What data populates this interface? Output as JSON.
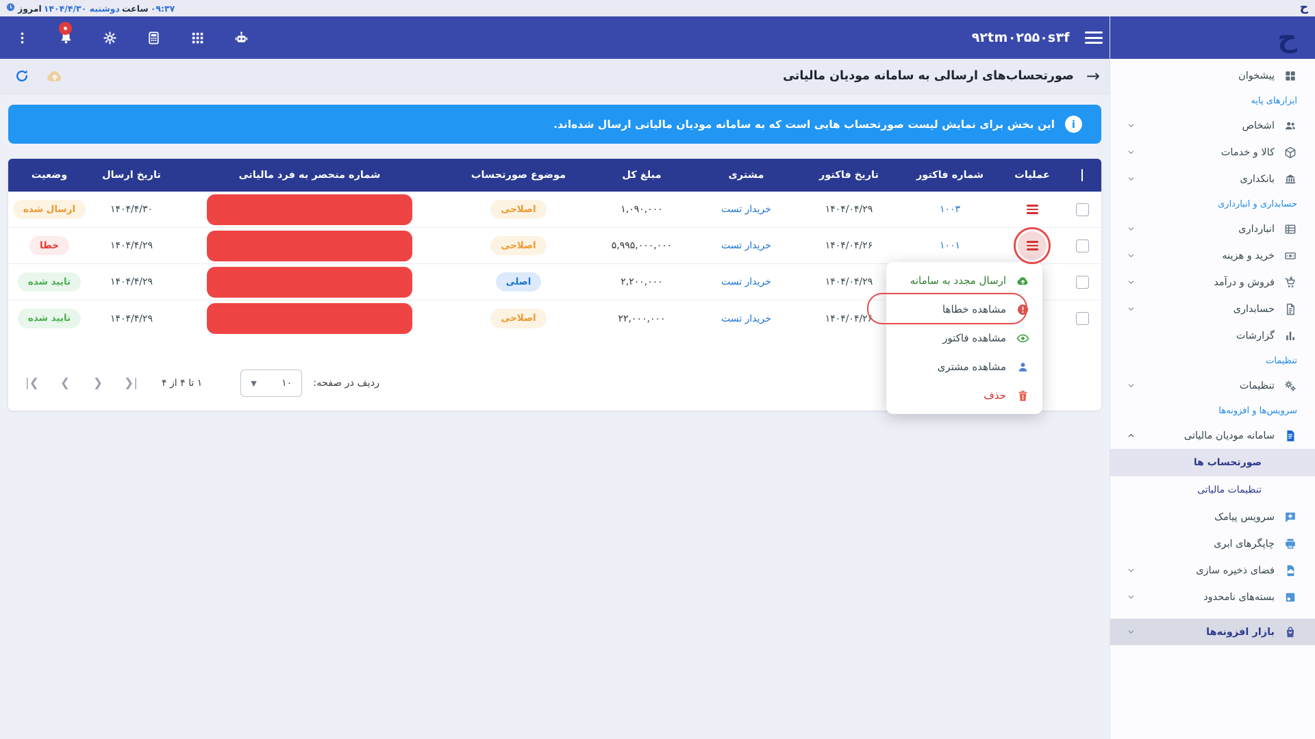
{
  "topbar": {
    "today_label": "امروز",
    "weekday_date": "دوشنبه ۱۴۰۴/۴/۳۰",
    "hour_label": "ساعت",
    "time": "۰۹:۳۷",
    "logo_glyph": "ح"
  },
  "navbar": {
    "workspace_id": "۹۲tm۰۲۵۵۰s۳f",
    "logo_glyph": "ح",
    "icons": [
      "kebab-menu-icon",
      "notifications-bell-icon",
      "gear-icon",
      "calculator-icon",
      "apps-grid-icon",
      "assistant-robot-icon"
    ]
  },
  "page": {
    "title": "صورتحساب‌های ارسالی به سامانه مودیان مالیاتی",
    "banner_text": "این بخش برای نمایش لیست صورتحساب هایی است که به سامانه مودیان مالیاتی ارسال شده‌اند."
  },
  "sidebar": {
    "entries": [
      {
        "type": "item",
        "label": "پیشخوان",
        "icon": "dashboard-icon",
        "tone": "gray",
        "chevron": null
      },
      {
        "type": "section",
        "label": "ابزارهای پایه"
      },
      {
        "type": "item",
        "label": "اشخاص",
        "icon": "people-icon",
        "tone": "gray",
        "chevron": "down"
      },
      {
        "type": "item",
        "label": "کالا و خدمات",
        "icon": "goods-icon",
        "tone": "gray",
        "chevron": "down"
      },
      {
        "type": "item",
        "label": "بانکداری",
        "icon": "bank-icon",
        "tone": "gray",
        "chevron": "down"
      },
      {
        "type": "section",
        "label": "حسابداری و انبارداری"
      },
      {
        "type": "item",
        "label": "انبارداری",
        "icon": "warehouse-icon",
        "tone": "gray",
        "chevron": "down"
      },
      {
        "type": "item",
        "label": "خرید و هزینه",
        "icon": "purchase-icon",
        "tone": "gray",
        "chevron": "down"
      },
      {
        "type": "item",
        "label": "فروش و درآمد",
        "icon": "sales-cart-icon",
        "tone": "gray",
        "chevron": "down"
      },
      {
        "type": "item",
        "label": "حسابداری",
        "icon": "accounting-doc-icon",
        "tone": "gray",
        "chevron": "down"
      },
      {
        "type": "item",
        "label": "گزارشات",
        "icon": "reports-chart-icon",
        "tone": "gray",
        "chevron": null
      },
      {
        "type": "section",
        "label": "تنظیمات"
      },
      {
        "type": "item",
        "label": "تنظیمات",
        "icon": "settings-gears-icon",
        "tone": "gray",
        "chevron": "down"
      },
      {
        "type": "section",
        "label": "سرویس‌ها و افزونه‌ها"
      },
      {
        "type": "item",
        "label": "سامانه مودیان مالیاتی",
        "icon": "tax-system-doc-icon",
        "tone": "bright",
        "chevron": "up"
      },
      {
        "type": "sub",
        "label": "صورتحساب ها",
        "selected": true
      },
      {
        "type": "sub",
        "label": "تنظیمات مالیاتی",
        "selected": false
      },
      {
        "type": "item",
        "label": "سرویس پیامک",
        "icon": "sms-service-icon",
        "tone": "blue",
        "chevron": null
      },
      {
        "type": "item",
        "label": "چاپگرهای ابری",
        "icon": "cloud-printer-icon",
        "tone": "blue",
        "chevron": null
      },
      {
        "type": "item",
        "label": "فضای ذخیره سازی",
        "icon": "storage-file-icon",
        "tone": "blue",
        "chevron": "down"
      },
      {
        "type": "item",
        "label": "بسته‌های نامحدود",
        "icon": "packages-box-icon",
        "tone": "blue",
        "chevron": "down"
      },
      {
        "type": "item",
        "label": "بازار افزونه‌ها",
        "icon": "addons-market-bag-icon",
        "tone": "indigo",
        "chevron": "down",
        "market": true
      }
    ]
  },
  "table": {
    "headers": {
      "actions": "عملیات",
      "invoice_no": "شماره فاکتور",
      "invoice_date": "تاریخ فاکتور",
      "customer": "مشتری",
      "total": "مبلغ کل",
      "subject": "موضوع صورتحساب",
      "tax_uid": "شماره منحصر به فرد مالیاتی",
      "sent_date": "تاریخ ارسال",
      "status": "وضعیت"
    },
    "rows": [
      {
        "invoice_no": "۱۰۰۳",
        "invoice_date": "۱۴۰۴/۰۴/۲۹",
        "customer": "خریدار تست",
        "total": "۱,۰۹۰,۰۰۰",
        "subject": "اصلاحی",
        "subject_tone": "orange",
        "sent_date": "۱۴۰۴/۴/۳۰",
        "status": "ارسال شده",
        "status_tone": "orange",
        "action_highlighted": false
      },
      {
        "invoice_no": "۱۰۰۱",
        "invoice_date": "۱۴۰۴/۰۴/۲۶",
        "customer": "خریدار تست",
        "total": "۵,۹۹۵,۰۰۰,۰۰۰",
        "subject": "اصلاحی",
        "subject_tone": "orange",
        "sent_date": "۱۴۰۴/۴/۲۹",
        "status": "خطا",
        "status_tone": "red",
        "action_highlighted": true
      },
      {
        "invoice_no": "",
        "invoice_date": "۱۴۰۴/۰۴/۲۹",
        "customer": "خریدار تست",
        "total": "۲,۲۰۰,۰۰۰",
        "subject": "اصلی",
        "subject_tone": "blue",
        "sent_date": "۱۴۰۴/۴/۲۹",
        "status": "تایید شده",
        "status_tone": "green",
        "action_highlighted": false
      },
      {
        "invoice_no": "",
        "invoice_date": "۱۴۰۴/۰۴/۲۶",
        "customer": "خریدار تست",
        "total": "۲۲,۰۰۰,۰۰۰",
        "subject": "اصلاحی",
        "subject_tone": "orange",
        "sent_date": "۱۴۰۴/۴/۲۹",
        "status": "تایید شده",
        "status_tone": "green",
        "action_highlighted": false
      }
    ]
  },
  "pagination": {
    "rows_per_page_label": "ردیف در صفحه:",
    "rows_per_page_value": "۱۰",
    "range_text": "۱ تا ۴ از ۴",
    "nav_icons": [
      "first-page-icon",
      "previous-page-icon",
      "next-page-icon",
      "last-page-icon"
    ],
    "nav_glyphs": [
      "|<",
      "<",
      ">",
      ">|"
    ]
  },
  "context_menu": {
    "items": [
      {
        "label": "ارسال مجدد به سامانه",
        "icon": "resend-cloud-icon",
        "tone": "green"
      },
      {
        "label": "مشاهده خطاها",
        "icon": "view-errors-icon",
        "tone": "dark",
        "annotated": true
      },
      {
        "label": "مشاهده فاکتور",
        "icon": "view-invoice-eye-icon",
        "tone": "dark"
      },
      {
        "label": "مشاهده مشتری",
        "icon": "view-customer-icon",
        "tone": "dark"
      },
      {
        "label": "حذف",
        "icon": "delete-trash-icon",
        "tone": "red"
      }
    ]
  },
  "colors": {
    "navbar": "#3949ab",
    "table_header": "#2a3a92",
    "banner": "#2196f3",
    "redaction": "#ee4444",
    "link": "#1b74d3",
    "annotation": "#e64c4c"
  }
}
